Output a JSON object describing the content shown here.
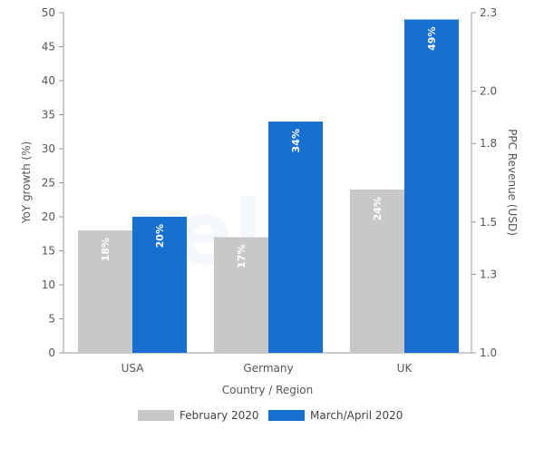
{
  "chart_data": {
    "type": "bar",
    "categories": [
      "USA",
      "Germany",
      "UK"
    ],
    "series": [
      {
        "name": "February 2020",
        "values": [
          18,
          17,
          24
        ],
        "labels": [
          "18%",
          "17%",
          "24%"
        ],
        "color": "#c8c8c8"
      },
      {
        "name": "March/April 2020",
        "values": [
          20,
          34,
          49
        ],
        "labels": [
          "20%",
          "34%",
          "49%"
        ],
        "color": "#1670d0"
      }
    ],
    "xlabel": "Country / Region",
    "ylabel": "YoY growth (%)",
    "y2label": "PPC Revenue (USD)",
    "ylim": [
      0,
      50
    ],
    "yticks": [
      "0",
      "5",
      "10",
      "15",
      "20",
      "25",
      "30",
      "35",
      "40",
      "45",
      "50"
    ],
    "y2lim": [
      1.0,
      2.3
    ],
    "y2ticks": [
      "1.0",
      "1.3",
      "1.5",
      "1.8",
      "2.0",
      "2.3"
    ],
    "legend_position": "bottom-center",
    "grid": false
  }
}
